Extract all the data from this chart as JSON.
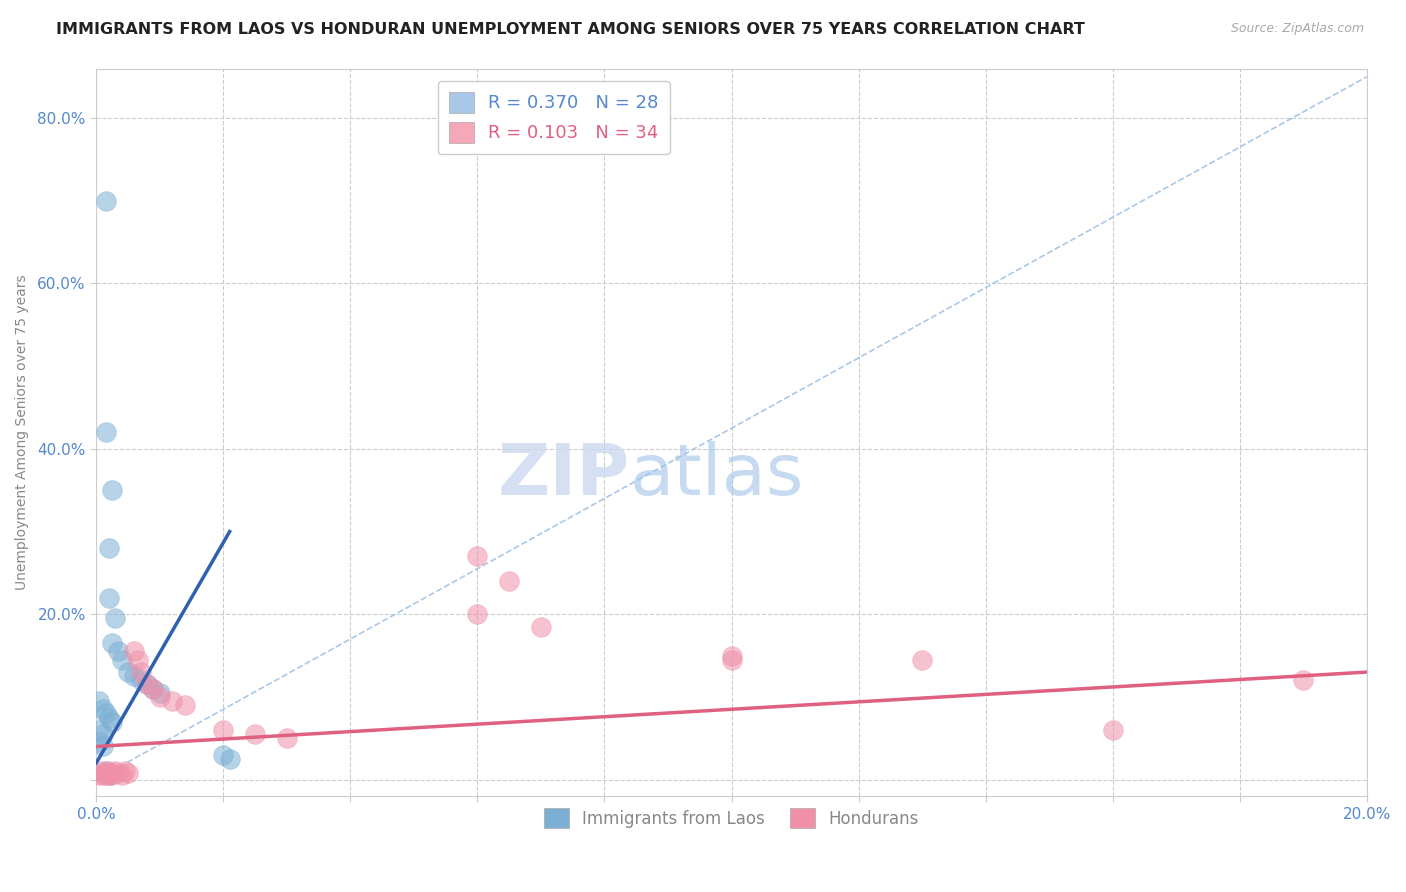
{
  "title": "IMMIGRANTS FROM LAOS VS HONDURAN UNEMPLOYMENT AMONG SENIORS OVER 75 YEARS CORRELATION CHART",
  "source_text": "Source: ZipAtlas.com",
  "ylabel": "Unemployment Among Seniors over 75 years",
  "xlim": [
    0.0,
    0.2
  ],
  "ylim": [
    -0.02,
    0.86
  ],
  "x_ticks": [
    0.0,
    0.02,
    0.04,
    0.06,
    0.08,
    0.1,
    0.12,
    0.14,
    0.16,
    0.18,
    0.2
  ],
  "y_ticks": [
    0.0,
    0.2,
    0.4,
    0.6,
    0.8
  ],
  "x_tick_labels": [
    "0.0%",
    "",
    "",
    "",
    "",
    "",
    "",
    "",
    "",
    "",
    "20.0%"
  ],
  "y_tick_labels": [
    "",
    "20.0%",
    "40.0%",
    "60.0%",
    "80.0%"
  ],
  "background_color": "#ffffff",
  "grid_color": "#cccccc",
  "watermark_zip": "ZIP",
  "watermark_atlas": "atlas",
  "laos_color": "#7bafd4",
  "laos_edge_color": "#5590c0",
  "honduran_color": "#f090a8",
  "honduran_edge_color": "#e06080",
  "laos_line_color": "#3060b0",
  "honduran_line_color": "#e06080",
  "diagonal_color": "#aac8e8",
  "legend_entries": [
    {
      "label_r": "R = ",
      "label_rv": "0.370",
      "label_n": "   N = ",
      "label_nv": "28",
      "color": "#a8c8e8"
    },
    {
      "label_r": "R = ",
      "label_rv": "0.103",
      "label_n": "   N = ",
      "label_nv": "34",
      "color": "#f4a8b8"
    }
  ],
  "laos_points": [
    [
      0.0015,
      0.7
    ],
    [
      0.0015,
      0.42
    ],
    [
      0.0025,
      0.35
    ],
    [
      0.002,
      0.28
    ],
    [
      0.002,
      0.22
    ],
    [
      0.003,
      0.195
    ],
    [
      0.0025,
      0.165
    ],
    [
      0.0035,
      0.155
    ],
    [
      0.004,
      0.145
    ],
    [
      0.005,
      0.13
    ],
    [
      0.006,
      0.125
    ],
    [
      0.007,
      0.12
    ],
    [
      0.008,
      0.115
    ],
    [
      0.009,
      0.11
    ],
    [
      0.01,
      0.105
    ],
    [
      0.0005,
      0.095
    ],
    [
      0.001,
      0.085
    ],
    [
      0.0015,
      0.08
    ],
    [
      0.002,
      0.075
    ],
    [
      0.0025,
      0.07
    ],
    [
      0.0005,
      0.06
    ],
    [
      0.001,
      0.055
    ],
    [
      0.0005,
      0.045
    ],
    [
      0.001,
      0.04
    ],
    [
      0.02,
      0.03
    ],
    [
      0.021,
      0.025
    ],
    [
      0.0015,
      0.01
    ],
    [
      0.002,
      0.005
    ]
  ],
  "honduran_points": [
    [
      0.0005,
      0.005
    ],
    [
      0.0008,
      0.01
    ],
    [
      0.001,
      0.005
    ],
    [
      0.0012,
      0.008
    ],
    [
      0.0015,
      0.005
    ],
    [
      0.0018,
      0.01
    ],
    [
      0.002,
      0.005
    ],
    [
      0.0022,
      0.008
    ],
    [
      0.0025,
      0.005
    ],
    [
      0.003,
      0.01
    ],
    [
      0.0035,
      0.008
    ],
    [
      0.004,
      0.005
    ],
    [
      0.0045,
      0.01
    ],
    [
      0.005,
      0.008
    ],
    [
      0.006,
      0.155
    ],
    [
      0.0065,
      0.145
    ],
    [
      0.007,
      0.13
    ],
    [
      0.008,
      0.115
    ],
    [
      0.009,
      0.11
    ],
    [
      0.01,
      0.1
    ],
    [
      0.012,
      0.095
    ],
    [
      0.014,
      0.09
    ],
    [
      0.02,
      0.06
    ],
    [
      0.025,
      0.055
    ],
    [
      0.03,
      0.05
    ],
    [
      0.06,
      0.27
    ],
    [
      0.065,
      0.24
    ],
    [
      0.06,
      0.2
    ],
    [
      0.07,
      0.185
    ],
    [
      0.1,
      0.15
    ],
    [
      0.1,
      0.145
    ],
    [
      0.13,
      0.145
    ],
    [
      0.16,
      0.06
    ],
    [
      0.19,
      0.12
    ]
  ],
  "laos_line": [
    [
      0.0,
      0.02
    ],
    [
      0.021,
      0.3
    ]
  ],
  "honduran_line": [
    [
      0.0,
      0.04
    ],
    [
      0.2,
      0.13
    ]
  ],
  "diagonal_line": [
    [
      0.0,
      0.0
    ],
    [
      0.2,
      0.85
    ]
  ]
}
